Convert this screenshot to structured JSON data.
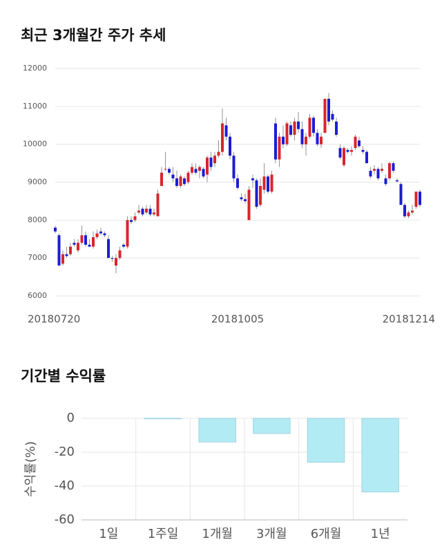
{
  "chart_data": [
    {
      "type": "candlestick",
      "title": "최근 3개월간 주가 추세",
      "categories": [
        "20180720",
        null,
        null,
        null,
        null,
        null,
        null,
        null,
        null,
        null,
        null,
        null,
        null,
        null,
        null,
        null,
        null,
        null,
        null,
        null,
        null,
        null,
        null,
        null,
        null,
        null,
        null,
        null,
        null,
        null,
        null,
        null,
        null,
        null,
        null,
        null,
        null,
        null,
        null,
        null,
        null,
        null,
        null,
        null,
        null,
        null,
        null,
        null,
        "20181005",
        null,
        null,
        null,
        null,
        null,
        null,
        null,
        null,
        null,
        null,
        null,
        null,
        null,
        null,
        null,
        null,
        null,
        null,
        null,
        null,
        null,
        null,
        null,
        null,
        null,
        null,
        null,
        null,
        null,
        null,
        null,
        null,
        null,
        null,
        null,
        null,
        null,
        null,
        null,
        null,
        null,
        null,
        null,
        null,
        null,
        null,
        null,
        "20181214"
      ],
      "open": [
        7800,
        7600,
        6850,
        7100,
        7100,
        7400,
        7200,
        7400,
        7600,
        7350,
        7300,
        7550,
        7700,
        7650,
        7500,
        7000,
        6800,
        7000,
        7350,
        7300,
        8000,
        8000,
        8200,
        8300,
        8200,
        8300,
        8150,
        8100,
        8900,
        9350,
        9350,
        9200,
        9100,
        8900,
        9100,
        9000,
        9250,
        9350,
        9300,
        9350,
        9200,
        9650,
        9500,
        9700,
        9800,
        10500,
        10200,
        9700,
        9100,
        8600,
        8550,
        8000,
        9100,
        9050,
        8400,
        8800,
        9150,
        8750,
        10550,
        9600,
        10200,
        10000,
        10500,
        10250,
        10600,
        10400,
        10000,
        10200,
        10700,
        10300,
        10000,
        10300,
        11200,
        10800,
        10600,
        9900,
        9450,
        9850,
        9800,
        9900,
        10100,
        9850,
        9800,
        9300,
        9300,
        9350,
        9300,
        9100,
        9100,
        9500,
        9050,
        8950,
        8400,
        8100,
        8200,
        8350,
        8750
      ],
      "high": [
        7850,
        7650,
        7200,
        7300,
        7400,
        7500,
        7500,
        7850,
        7700,
        7500,
        7700,
        7750,
        7800,
        7700,
        7600,
        7050,
        7100,
        7300,
        7400,
        8100,
        8100,
        8200,
        8400,
        8350,
        8400,
        8400,
        8300,
        8800,
        9400,
        9800,
        9400,
        9400,
        9300,
        9200,
        9150,
        9300,
        9500,
        9500,
        9450,
        9400,
        9700,
        9800,
        9800,
        10100,
        10950,
        10700,
        10300,
        9800,
        9200,
        8700,
        8700,
        8900,
        9200,
        9100,
        9100,
        9500,
        9200,
        9300,
        10700,
        10300,
        10500,
        10600,
        10600,
        10700,
        10850,
        10600,
        10300,
        10800,
        10750,
        10400,
        10300,
        11200,
        11350,
        10900,
        10700,
        10000,
        9950,
        9900,
        9950,
        10250,
        10200,
        9950,
        9850,
        9400,
        9450,
        9400,
        9500,
        9200,
        9550,
        9550,
        9100,
        9000,
        8450,
        8250,
        8400,
        8750,
        8800
      ],
      "low": [
        7650,
        6800,
        6800,
        7000,
        7050,
        7300,
        7150,
        7350,
        7300,
        7300,
        7250,
        7500,
        7600,
        7550,
        7000,
        6900,
        6600,
        6950,
        7250,
        7250,
        7900,
        7950,
        8150,
        8100,
        8150,
        8100,
        8100,
        8100,
        8900,
        9300,
        9200,
        9000,
        8850,
        8850,
        8900,
        8950,
        9200,
        9200,
        9100,
        9100,
        9000,
        9300,
        9400,
        9650,
        9700,
        10100,
        9600,
        9000,
        8800,
        8500,
        8450,
        8000,
        8850,
        8300,
        8350,
        8700,
        8700,
        8700,
        9500,
        9400,
        9900,
        9950,
        10200,
        10100,
        10300,
        9900,
        9700,
        10150,
        10200,
        9950,
        9900,
        10300,
        10500,
        10600,
        10200,
        9600,
        9400,
        9750,
        9700,
        9850,
        9900,
        9750,
        9500,
        9100,
        9200,
        9050,
        9250,
        8900,
        9050,
        9250,
        9000,
        8400,
        8050,
        8050,
        8150,
        8300,
        8350
      ],
      "close": [
        7700,
        6800,
        7100,
        7050,
        7300,
        7350,
        7400,
        7600,
        7350,
        7300,
        7550,
        7650,
        7650,
        7600,
        7000,
        6980,
        7000,
        7200,
        7300,
        8000,
        7950,
        8100,
        8250,
        8150,
        8300,
        8150,
        8200,
        8700,
        9250,
        9350,
        9250,
        9100,
        8900,
        9150,
        8950,
        9250,
        9400,
        9250,
        9400,
        9150,
        9650,
        9400,
        9700,
        9800,
        10550,
        10200,
        9700,
        9100,
        8850,
        8550,
        8500,
        8800,
        9050,
        8350,
        8900,
        9150,
        8750,
        9200,
        9600,
        10200,
        10000,
        10550,
        10250,
        10600,
        10400,
        10000,
        10200,
        10700,
        10300,
        10000,
        10200,
        11200,
        10600,
        10650,
        10250,
        9650,
        9900,
        9800,
        9850,
        10200,
        9950,
        9800,
        9500,
        9150,
        9350,
        9100,
        9350,
        8950,
        9500,
        9300,
        9020,
        8400,
        8100,
        8200,
        8250,
        8750,
        8400
      ],
      "up_color": "#d9252a",
      "down_color": "#1c1cd2",
      "ylim": [
        6000,
        12000
      ],
      "yticks": [
        6000,
        7000,
        8000,
        9000,
        10000,
        11000,
        12000
      ],
      "grid": true
    },
    {
      "type": "bar",
      "title": "기간별 수익률",
      "ylabel": "수익률(%)",
      "categories": [
        "1일",
        "1주일",
        "1개월",
        "3개월",
        "6개월",
        "1년"
      ],
      "values": [
        0,
        -0.3,
        -14,
        -9,
        -26,
        -43.5
      ],
      "color": "#b3ebf5",
      "edge_color": "#9ed3dc",
      "ylim": [
        -60,
        0
      ],
      "yticks": [
        0,
        -20,
        -40,
        -60
      ],
      "grid": true
    }
  ]
}
